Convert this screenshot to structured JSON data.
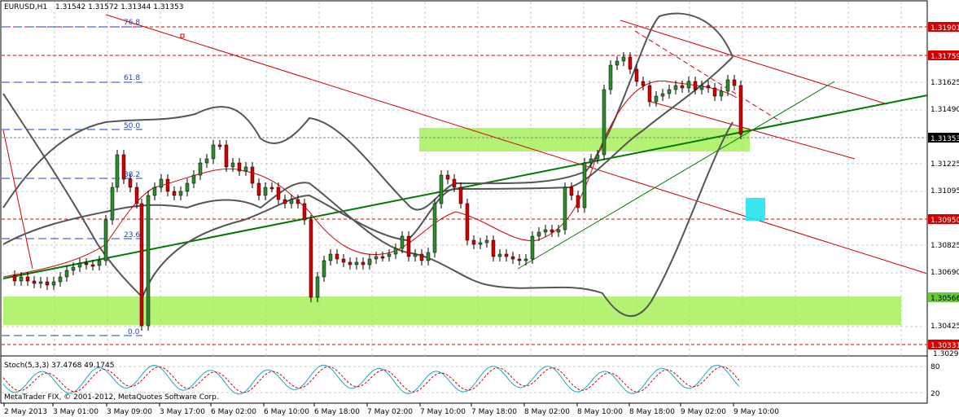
{
  "header": {
    "symbol": "EURUSD,H1",
    "ohlc": "1.31542 1.31572 1.31344 1.31353"
  },
  "oscillator": {
    "label": "Stoch(5,3,3) 37.4768 49.1745",
    "scale": [
      "80",
      "20"
    ]
  },
  "copyright": "MetaTrader FIX, © 2001-2012, MetaQuotes Software Corp.",
  "fibonacci": {
    "levels": [
      "76.8",
      "61.8",
      "50.0",
      "38.2",
      "23.6",
      "0.0"
    ]
  },
  "price_axis": {
    "ticks": [
      "1.31625",
      "1.31490",
      "1.31225",
      "1.31095",
      "1.30825",
      "1.30690",
      "1.30425",
      "1.30290"
    ],
    "tags": [
      "1.31901",
      "1.31759",
      "1.31353",
      "1.30950",
      "1.30566",
      "1.30331"
    ]
  },
  "time_axis": {
    "labels": [
      "2 May 2013",
      "3 May 01:00",
      "3 May 09:00",
      "3 May 17:00",
      "6 May 02:00",
      "6 May 10:00",
      "6 May 18:00",
      "7 May 02:00",
      "7 May 10:00",
      "7 May 18:00",
      "8 May 02:00",
      "8 May 10:00",
      "8 May 18:00",
      "9 May 02:00",
      "9 May 10:00"
    ]
  },
  "colors": {
    "bull": "#2e8b2e",
    "bear": "#d40000",
    "zone": "#99ee44",
    "trend_green": "#007a00",
    "channel_red": "#d40000",
    "bands": "#555555",
    "marker": "#22e4ee"
  }
}
